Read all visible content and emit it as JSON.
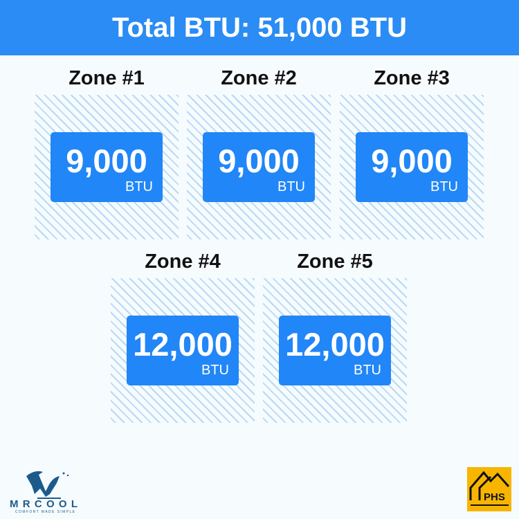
{
  "header": {
    "title": "Total BTU: 51,000 BTU"
  },
  "zones": [
    {
      "title": "Zone #1",
      "value": "9,000",
      "unit": "BTU"
    },
    {
      "title": "Zone #2",
      "value": "9,000",
      "unit": "BTU"
    },
    {
      "title": "Zone #3",
      "value": "9,000",
      "unit": "BTU"
    },
    {
      "title": "Zone #4",
      "value": "12,000",
      "unit": "BTU"
    },
    {
      "title": "Zone #5",
      "value": "12,000",
      "unit": "BTU"
    }
  ],
  "logos": {
    "left": {
      "name": "MRCOOL",
      "tagline": "COMFORT MADE SIMPLE"
    },
    "right": {
      "name": "PHS"
    }
  },
  "colors": {
    "accent": "#2a8cf4",
    "card": "#2186f7",
    "hatch": "#b8d9f5",
    "phs": "#f7b500",
    "mrcool": "#1c5a8c"
  }
}
